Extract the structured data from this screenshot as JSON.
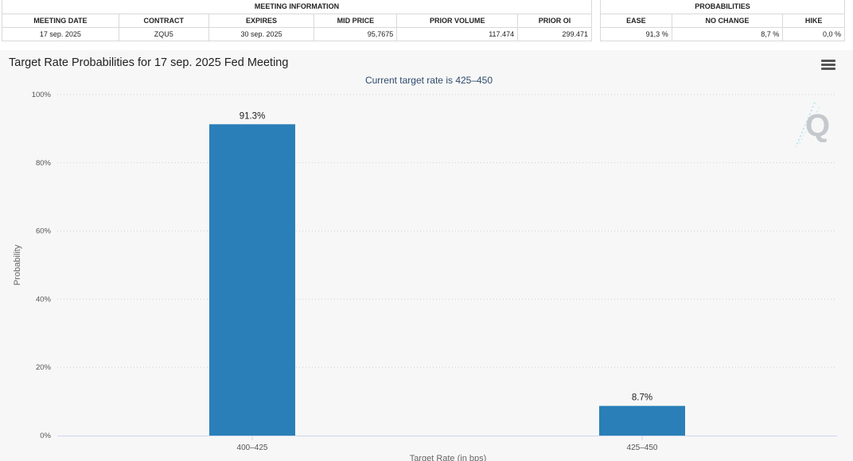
{
  "meeting_info": {
    "heading": "MEETING INFORMATION",
    "columns": [
      "MEETING DATE",
      "CONTRACT",
      "EXPIRES",
      "MID PRICE",
      "PRIOR VOLUME",
      "PRIOR OI"
    ],
    "row": {
      "meeting_date": "17 sep. 2025",
      "contract": "ZQU5",
      "expires": "30 sep. 2025",
      "mid_price": "95,7675",
      "prior_volume": "117.474",
      "prior_oi": "299.471"
    }
  },
  "probabilities": {
    "heading": "PROBABILITIES",
    "columns": [
      "EASE",
      "NO CHANGE",
      "HIKE"
    ],
    "row": {
      "ease": "91,3 %",
      "no_change": "8,7 %",
      "hike": "0,0 %"
    }
  },
  "colors": {
    "bar": "#2a7fb8",
    "grid": "#cfcfcf",
    "background": "#f7f7f7"
  },
  "icons": {
    "menu": "hamburger-menu-icon",
    "watermark": "q-logo-icon"
  },
  "chart_data": {
    "type": "bar",
    "title": "Target Rate Probabilities for 17 sep. 2025 Fed Meeting",
    "subtitle": "Current target rate is 425–450",
    "xlabel": "Target Rate (in bps)",
    "ylabel": "Probability",
    "categories": [
      "400–425",
      "425–450"
    ],
    "values": [
      91.3,
      8.7
    ],
    "data_labels": [
      "91.3%",
      "8.7%"
    ],
    "ylim": [
      0,
      100
    ],
    "y_ticks": [
      0,
      20,
      40,
      60,
      80,
      100
    ],
    "y_tick_labels": [
      "0%",
      "20%",
      "40%",
      "60%",
      "80%",
      "100%"
    ],
    "grid": true,
    "legend": "none"
  }
}
